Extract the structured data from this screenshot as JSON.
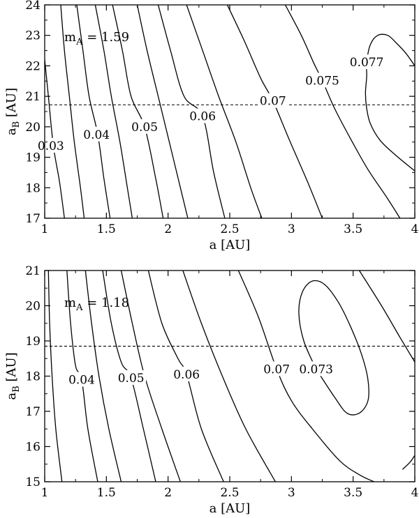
{
  "chart_data": [
    {
      "type": "contour",
      "xlabel": "a  [AU]",
      "ylabel": "a",
      "ylabel_sub": "B",
      "ylabel_unit": " [AU]",
      "xlim": [
        1,
        4
      ],
      "ylim": [
        17,
        24
      ],
      "x_ticks": [
        1,
        1.5,
        2,
        2.5,
        3,
        3.5,
        4
      ],
      "x_tick_labels": [
        "1",
        "1.5",
        "2",
        "2.5",
        "3",
        "3.5",
        "4"
      ],
      "y_ticks": [
        17,
        18,
        19,
        20,
        21,
        22,
        23,
        24
      ],
      "y_tick_labels": [
        "17",
        "18",
        "19",
        "20",
        "21",
        "22",
        "23",
        "24"
      ],
      "annotation": {
        "main": "m",
        "sub": "A",
        "rest": " = 1.59"
      },
      "dashed_line_y": 20.72,
      "contour_labels": [
        {
          "text": "0.03",
          "x": 1.05,
          "y": 19.38
        },
        {
          "text": "0.04",
          "x": 1.42,
          "y": 19.75
        },
        {
          "text": "0.05",
          "x": 1.81,
          "y": 20.0
        },
        {
          "text": "0.06",
          "x": 2.28,
          "y": 20.35
        },
        {
          "text": "0.07",
          "x": 2.85,
          "y": 20.85
        },
        {
          "text": "0.075",
          "x": 3.25,
          "y": 21.52
        },
        {
          "text": "0.077",
          "x": 3.61,
          "y": 22.12
        }
      ],
      "contours": [
        {
          "level": 0.03,
          "points": [
            [
              1.0,
              22.2
            ],
            [
              1.03,
              21.0
            ],
            [
              1.07,
              19.38
            ],
            [
              1.12,
              18.2
            ],
            [
              1.16,
              17.0
            ]
          ]
        },
        {
          "level": 0.035,
          "points": [
            [
              1.13,
              24.0
            ],
            [
              1.16,
              22.5
            ],
            [
              1.2,
              21.0
            ],
            [
              1.24,
              19.5
            ],
            [
              1.29,
              18.0
            ],
            [
              1.32,
              17.0
            ]
          ]
        },
        {
          "level": 0.04,
          "points": [
            [
              1.26,
              24.0
            ],
            [
              1.31,
              22.5
            ],
            [
              1.36,
              21.0
            ],
            [
              1.43,
              19.75
            ],
            [
              1.48,
              18.3
            ],
            [
              1.53,
              17.0
            ]
          ]
        },
        {
          "level": 0.045,
          "points": [
            [
              1.41,
              24.0
            ],
            [
              1.48,
              22.5
            ],
            [
              1.54,
              21.0
            ],
            [
              1.61,
              19.5
            ],
            [
              1.67,
              18.0
            ],
            [
              1.71,
              17.0
            ]
          ]
        },
        {
          "level": 0.05,
          "points": [
            [
              1.55,
              24.0
            ],
            [
              1.63,
              22.5
            ],
            [
              1.7,
              21.0
            ],
            [
              1.81,
              20.0
            ],
            [
              1.9,
              18.3
            ],
            [
              1.96,
              17.0
            ]
          ]
        },
        {
          "level": 0.055,
          "points": [
            [
              1.75,
              24.0
            ],
            [
              1.83,
              22.5
            ],
            [
              1.92,
              21.0
            ],
            [
              2.01,
              19.5
            ],
            [
              2.1,
              18.0
            ],
            [
              2.16,
              17.0
            ]
          ]
        },
        {
          "level": 0.06,
          "points": [
            [
              1.92,
              24.0
            ],
            [
              2.02,
              22.5
            ],
            [
              2.13,
              21.0
            ],
            [
              2.28,
              20.35
            ],
            [
              2.37,
              18.5
            ],
            [
              2.46,
              17.0
            ]
          ]
        },
        {
          "level": 0.065,
          "points": [
            [
              2.15,
              24.0
            ],
            [
              2.28,
              22.5
            ],
            [
              2.41,
              21.0
            ],
            [
              2.55,
              19.5
            ],
            [
              2.67,
              18.0
            ],
            [
              2.76,
              17.0
            ]
          ]
        },
        {
          "level": 0.07,
          "points": [
            [
              2.48,
              24.0
            ],
            [
              2.62,
              22.8
            ],
            [
              2.75,
              21.6
            ],
            [
              2.85,
              20.85
            ],
            [
              2.98,
              19.6
            ],
            [
              3.13,
              18.2
            ],
            [
              3.25,
              17.0
            ]
          ]
        },
        {
          "level": 0.075,
          "points": [
            [
              2.95,
              24.0
            ],
            [
              3.08,
              23.0
            ],
            [
              3.18,
              22.1
            ],
            [
              3.25,
              21.52
            ],
            [
              3.35,
              20.6
            ],
            [
              3.48,
              19.6
            ],
            [
              3.62,
              18.6
            ],
            [
              3.77,
              17.7
            ],
            [
              3.88,
              17.0
            ]
          ]
        },
        {
          "level": 0.077,
          "points": [
            [
              4.0,
              18.55
            ],
            [
              3.85,
              19.05
            ],
            [
              3.72,
              19.55
            ],
            [
              3.64,
              20.1
            ],
            [
              3.61,
              20.6
            ],
            [
              3.6,
              21.1
            ],
            [
              3.61,
              21.65
            ],
            [
              3.61,
              22.12
            ],
            [
              3.64,
              22.7
            ],
            [
              3.7,
              23.0
            ],
            [
              3.78,
              23.0
            ],
            [
              3.85,
              22.75
            ],
            [
              3.93,
              22.4
            ],
            [
              4.0,
              22.0
            ]
          ]
        }
      ]
    },
    {
      "type": "contour",
      "xlabel": "a  [AU]",
      "ylabel": "a",
      "ylabel_sub": "B",
      "ylabel_unit": " [AU]",
      "xlim": [
        1,
        4
      ],
      "ylim": [
        15,
        21
      ],
      "x_ticks": [
        1,
        1.5,
        2,
        2.5,
        3,
        3.5,
        4
      ],
      "x_tick_labels": [
        "1",
        "1.5",
        "2",
        "2.5",
        "3",
        "3.5",
        "4"
      ],
      "y_ticks": [
        15,
        16,
        17,
        18,
        19,
        20,
        21
      ],
      "y_tick_labels": [
        "15",
        "16",
        "17",
        "18",
        "19",
        "20",
        "21"
      ],
      "annotation": {
        "main": "m",
        "sub": "A",
        "rest": " = 1.18"
      },
      "dashed_line_y": 18.85,
      "contour_labels": [
        {
          "text": "0.04",
          "x": 1.3,
          "y": 17.9
        },
        {
          "text": "0.05",
          "x": 1.7,
          "y": 17.95
        },
        {
          "text": "0.06",
          "x": 2.15,
          "y": 18.05
        },
        {
          "text": "0.07",
          "x": 2.88,
          "y": 18.2
        },
        {
          "text": "0.073",
          "x": 3.2,
          "y": 18.2
        }
      ],
      "contours": [
        {
          "level": 0.035,
          "points": [
            [
              1.03,
              21.0
            ],
            [
              1.04,
              19.5
            ],
            [
              1.06,
              18.0
            ],
            [
              1.09,
              16.5
            ],
            [
              1.14,
              15.0
            ]
          ]
        },
        {
          "level": 0.04,
          "points": [
            [
              1.18,
              21.0
            ],
            [
              1.21,
              19.5
            ],
            [
              1.25,
              18.3
            ],
            [
              1.3,
              17.9
            ],
            [
              1.35,
              16.5
            ],
            [
              1.43,
              15.0
            ]
          ]
        },
        {
          "level": 0.045,
          "points": [
            [
              1.33,
              21.0
            ],
            [
              1.38,
              19.5
            ],
            [
              1.44,
              18.0
            ],
            [
              1.52,
              16.5
            ],
            [
              1.62,
              15.0
            ]
          ]
        },
        {
          "level": 0.05,
          "points": [
            [
              1.47,
              21.0
            ],
            [
              1.54,
              19.5
            ],
            [
              1.62,
              18.4
            ],
            [
              1.7,
              17.95
            ],
            [
              1.8,
              16.5
            ],
            [
              1.9,
              15.0
            ]
          ]
        },
        {
          "level": 0.055,
          "points": [
            [
              1.62,
              21.0
            ],
            [
              1.71,
              19.5
            ],
            [
              1.81,
              18.0
            ],
            [
              1.95,
              16.5
            ],
            [
              2.1,
              15.0
            ]
          ]
        },
        {
          "level": 0.06,
          "points": [
            [
              1.84,
              21.0
            ],
            [
              1.95,
              19.5
            ],
            [
              2.08,
              18.5
            ],
            [
              2.15,
              18.05
            ],
            [
              2.27,
              16.5
            ],
            [
              2.45,
              15.0
            ]
          ]
        },
        {
          "level": 0.065,
          "points": [
            [
              2.12,
              21.0
            ],
            [
              2.27,
              19.5
            ],
            [
              2.44,
              18.0
            ],
            [
              2.63,
              16.5
            ],
            [
              2.87,
              15.0
            ]
          ]
        },
        {
          "level": 0.07,
          "points": [
            [
              2.57,
              21.0
            ],
            [
              2.73,
              19.7
            ],
            [
              2.88,
              18.2
            ],
            [
              3.0,
              17.3
            ],
            [
              3.17,
              16.5
            ],
            [
              3.39,
              15.6
            ],
            [
              3.55,
              15.2
            ],
            [
              3.67,
              15.0
            ]
          ]
        },
        {
          "level": 0.073,
          "points": [
            [
              3.2,
              18.2
            ],
            [
              3.35,
              17.4
            ],
            [
              3.45,
              16.95
            ],
            [
              3.55,
              16.95
            ],
            [
              3.62,
              17.3
            ],
            [
              3.62,
              17.9
            ],
            [
              3.57,
              18.6
            ],
            [
              3.48,
              19.4
            ],
            [
              3.38,
              20.1
            ],
            [
              3.27,
              20.6
            ],
            [
              3.17,
              20.7
            ],
            [
              3.09,
              20.4
            ],
            [
              3.06,
              19.8
            ],
            [
              3.1,
              19.0
            ],
            [
              3.2,
              18.2
            ]
          ]
        },
        {
          "level": 0.072,
          "points": [
            [
              3.55,
              21.0
            ],
            [
              3.73,
              20.0
            ],
            [
              3.88,
              19.1
            ],
            [
              4.0,
              18.4
            ]
          ]
        },
        {
          "level": 0.071,
          "points": [
            [
              3.9,
              15.35
            ],
            [
              3.96,
              15.55
            ],
            [
              4.0,
              15.75
            ]
          ]
        }
      ]
    }
  ]
}
